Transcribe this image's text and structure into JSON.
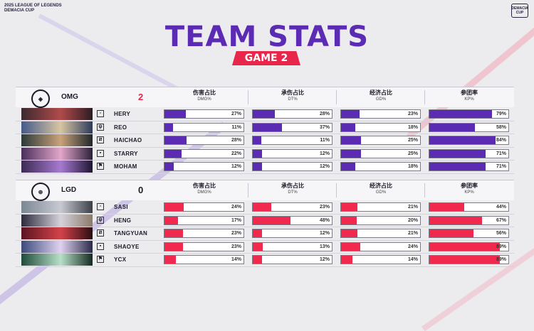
{
  "event": {
    "line1": "2025 LEAGUE OF LEGENDS",
    "line2": "DEMACIA CUP",
    "logo_text": "DEMACIA CUP"
  },
  "title": "TEAM STATS",
  "game": "GAME 2",
  "colors": {
    "title": "#5b2bb4",
    "badge": "#e8264b",
    "team_a_bar": "#5b2bb4",
    "team_b_bar": "#f2294e"
  },
  "columns": [
    {
      "cn": "伤害占比",
      "en": "DMG%"
    },
    {
      "cn": "承伤占比",
      "en": "DT%"
    },
    {
      "cn": "经济占比",
      "en": "GD%"
    },
    {
      "cn": "参团率",
      "en": "KP%"
    }
  ],
  "teams": [
    {
      "name": "OMG",
      "score": "2",
      "logo_icon": "omg-logo-icon",
      "players": [
        {
          "role_icon": "top-lane-icon",
          "name": "HERY",
          "dmg": "27%",
          "dt": "28%",
          "gd": "23%",
          "kp": "79%",
          "dmg_v": 27,
          "dt_v": 28,
          "gd_v": 23,
          "kp_v": 79
        },
        {
          "role_icon": "jungle-icon",
          "name": "REO",
          "dmg": "11%",
          "dt": "37%",
          "gd": "18%",
          "kp": "58%",
          "dmg_v": 11,
          "dt_v": 37,
          "gd_v": 18,
          "kp_v": 58
        },
        {
          "role_icon": "mid-lane-icon",
          "name": "HAICHAO",
          "dmg": "28%",
          "dt": "11%",
          "gd": "25%",
          "kp": "84%",
          "dmg_v": 28,
          "dt_v": 11,
          "gd_v": 25,
          "kp_v": 84
        },
        {
          "role_icon": "bot-lane-icon",
          "name": "STARRY",
          "dmg": "22%",
          "dt": "12%",
          "gd": "25%",
          "kp": "71%",
          "dmg_v": 22,
          "dt_v": 12,
          "gd_v": 25,
          "kp_v": 71
        },
        {
          "role_icon": "support-icon",
          "name": "MOHAM",
          "dmg": "12%",
          "dt": "12%",
          "gd": "18%",
          "kp": "71%",
          "dmg_v": 12,
          "dt_v": 12,
          "gd_v": 18,
          "kp_v": 71
        }
      ]
    },
    {
      "name": "LGD",
      "score": "0",
      "logo_icon": "lgd-logo-icon",
      "players": [
        {
          "role_icon": "top-lane-icon",
          "name": "SASI",
          "dmg": "24%",
          "dt": "23%",
          "gd": "21%",
          "kp": "44%",
          "dmg_v": 24,
          "dt_v": 23,
          "gd_v": 21,
          "kp_v": 44
        },
        {
          "role_icon": "jungle-icon",
          "name": "HENG",
          "dmg": "17%",
          "dt": "48%",
          "gd": "20%",
          "kp": "67%",
          "dmg_v": 17,
          "dt_v": 48,
          "gd_v": 20,
          "kp_v": 67
        },
        {
          "role_icon": "mid-lane-icon",
          "name": "TANGYUAN",
          "dmg": "23%",
          "dt": "12%",
          "gd": "21%",
          "kp": "56%",
          "dmg_v": 23,
          "dt_v": 12,
          "gd_v": 21,
          "kp_v": 56
        },
        {
          "role_icon": "bot-lane-icon",
          "name": "SHAOYE",
          "dmg": "23%",
          "dt": "13%",
          "gd": "24%",
          "kp": "89%",
          "dmg_v": 23,
          "dt_v": 13,
          "gd_v": 24,
          "kp_v": 89
        },
        {
          "role_icon": "support-icon",
          "name": "YCX",
          "dmg": "14%",
          "dt": "12%",
          "gd": "14%",
          "kp": "89%",
          "dmg_v": 14,
          "dt_v": 12,
          "gd_v": 14,
          "kp_v": 89
        }
      ]
    }
  ]
}
